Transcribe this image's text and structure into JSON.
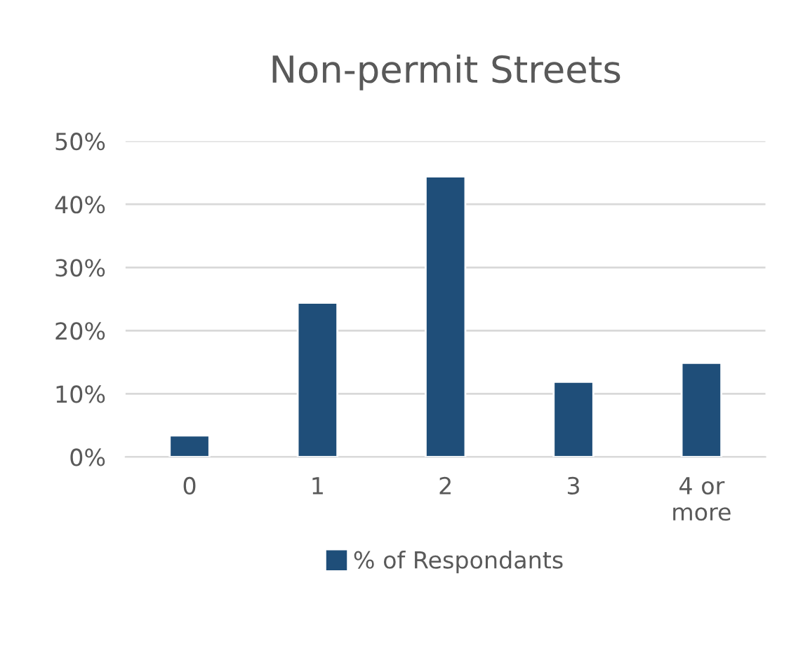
{
  "chart_data": {
    "type": "bar",
    "title": "Non-permit Streets",
    "categories": [
      "0",
      "1",
      "2",
      "3",
      "4 or\nmore"
    ],
    "series": [
      {
        "name": "% of Respondants",
        "color": "#1f4e79",
        "values": [
          3.4,
          24.4,
          44.4,
          11.9,
          14.9
        ]
      }
    ],
    "ylim": [
      0,
      50
    ],
    "yticks": [
      {
        "value": 0,
        "label": "0%"
      },
      {
        "value": 10,
        "label": "10%"
      },
      {
        "value": 20,
        "label": "20%"
      },
      {
        "value": 30,
        "label": "30%"
      },
      {
        "value": 40,
        "label": "40%"
      },
      {
        "value": 50,
        "label": "50%"
      }
    ],
    "grid": "y",
    "legend": "bottom"
  }
}
